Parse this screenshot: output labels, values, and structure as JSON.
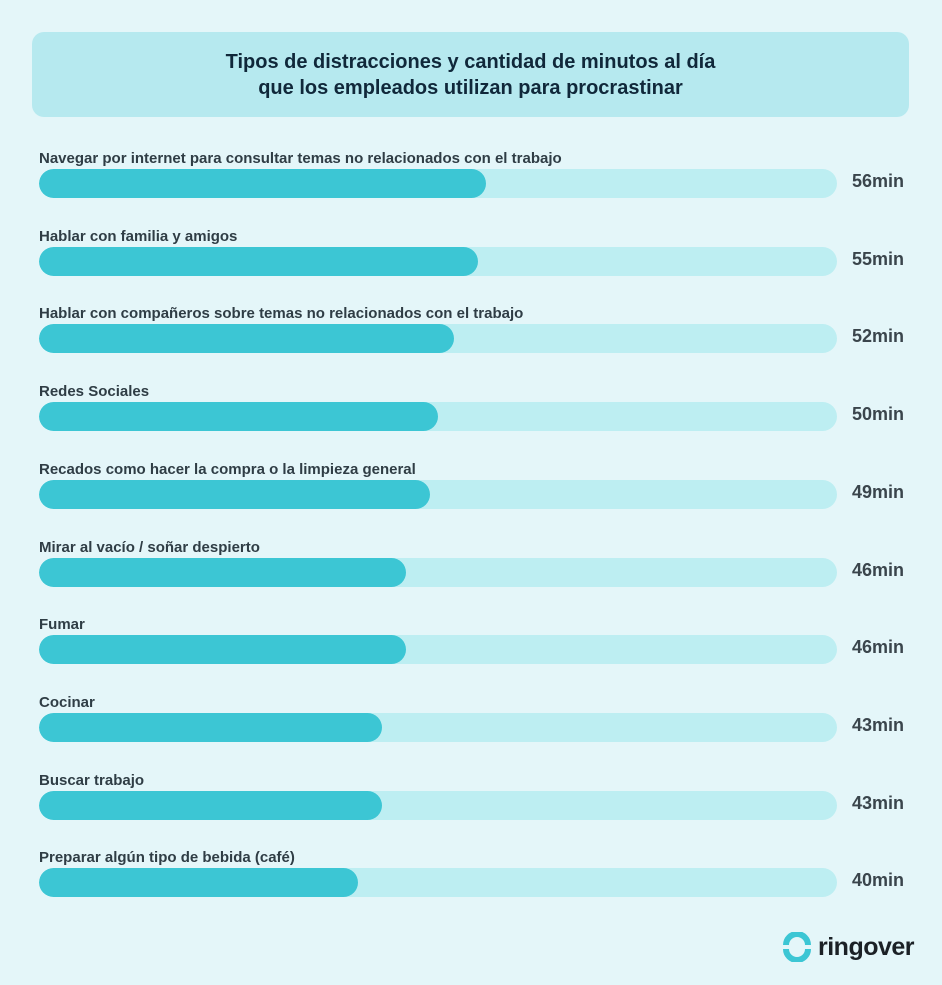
{
  "chart_data": {
    "type": "bar",
    "orientation": "horizontal",
    "title": [
      "Tipos de distracciones y cantidad de minutos al día",
      "que los empleados utilizan para procrastinar"
    ],
    "categories": [
      "Navegar por internet para consultar temas no relacionados con el trabajo",
      "Hablar con familia y amigos",
      "Hablar con compañeros sobre temas no relacionados con el trabajo",
      "Redes Sociales",
      "Recados como hacer la compra o la limpieza general",
      "Mirar al vacío / soñar despierto",
      "Fumar",
      "Cocinar",
      "Buscar trabajo",
      "Preparar algún tipo de bebida (café)"
    ],
    "values": [
      56,
      55,
      52,
      50,
      49,
      46,
      46,
      43,
      43,
      40
    ],
    "value_labels": [
      "56min",
      "55min",
      "52min",
      "50min",
      "49min",
      "46min",
      "46min",
      "43min",
      "43min",
      "40min"
    ],
    "unit": "min",
    "xlim": [
      0,
      100
    ],
    "grid": false,
    "colors": {
      "fill": "#3cc6d4",
      "track": "#bdeef2",
      "background": "#e4f6f9",
      "title_box": "#b6e9ef"
    }
  },
  "brand": {
    "name": "ringover",
    "color": "#3cc6d4"
  }
}
